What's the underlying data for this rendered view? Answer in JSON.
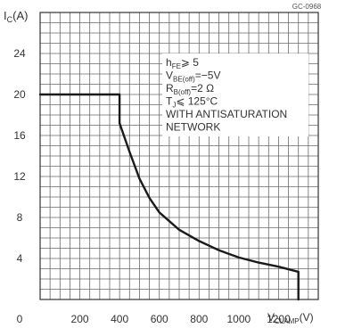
{
  "figure_code": "GC-0968",
  "chart_data": {
    "type": "line",
    "ylabel_main": "I",
    "ylabel_sub": "C",
    "ylabel_unit": "(A)",
    "xlabel_main": "V",
    "xlabel_sub": "CLAMP",
    "xlabel_unit": "(V)",
    "xlim": [
      0,
      1400
    ],
    "ylim": [
      0,
      28
    ],
    "x_ticks": [
      0,
      200,
      400,
      600,
      800,
      1000,
      1200
    ],
    "y_ticks": [
      0,
      4,
      8,
      12,
      16,
      20,
      24
    ],
    "x_tick_labels": [
      "0",
      "200",
      "400",
      "600",
      "800",
      "1000",
      "1200"
    ],
    "y_tick_labels": [
      "0",
      "4",
      "8",
      "12",
      "16",
      "20",
      "24"
    ],
    "grid": true,
    "series": [
      {
        "points": [
          [
            0,
            20
          ],
          [
            400,
            20
          ],
          [
            400,
            17.2
          ],
          [
            450,
            14.4
          ],
          [
            500,
            11.8
          ],
          [
            550,
            9.9
          ],
          [
            600,
            8.5
          ],
          [
            700,
            6.8
          ],
          [
            800,
            5.7
          ],
          [
            900,
            4.8
          ],
          [
            1000,
            4.1
          ],
          [
            1100,
            3.6
          ],
          [
            1200,
            3.2
          ],
          [
            1300,
            2.7
          ],
          [
            1300,
            0
          ]
        ]
      }
    ],
    "annotations": [
      {
        "main": "h",
        "sub": "FE",
        "rest": "⩾ 5"
      },
      {
        "main": "V",
        "sub": "BE(off)",
        "rest": "=−5V"
      },
      {
        "main": "R",
        "sub": "B(off)",
        "rest": "=2 Ω"
      },
      {
        "main": "T",
        "sub": "J",
        "rest": "⩽ 125°C"
      },
      {
        "main": "WITH ANTISATURATION",
        "sub": "",
        "rest": ""
      },
      {
        "main": "NETWORK",
        "sub": "",
        "rest": ""
      }
    ]
  }
}
